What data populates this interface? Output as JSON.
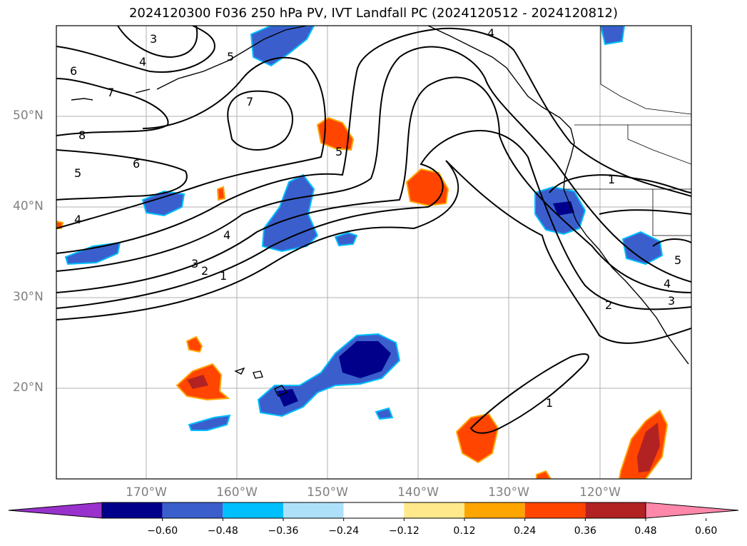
{
  "title": "2024120300 F036 250 hPa PV, IVT Landfall PC (2024120512 - 2024120812)",
  "lat_labels": [
    "50°N",
    "40°N",
    "30°N",
    "20°N"
  ],
  "lon_labels": [
    "170°W",
    "160°W",
    "150°W",
    "140°W",
    "130°W",
    "120°W"
  ],
  "contour_labels": [
    "3",
    "4",
    "5",
    "6",
    "7",
    "7",
    "8",
    "6",
    "5",
    "4",
    "4",
    "3",
    "2",
    "1",
    "5",
    "4",
    "1",
    "1",
    "2",
    "3",
    "4",
    "5",
    "1"
  ],
  "colorbar": {
    "colors": [
      "#9932CC",
      "#00008B",
      "#3A5FCD",
      "#00BFFF",
      "#ADE1FA",
      "#FFFFFF",
      "#FFE98A",
      "#FFA500",
      "#FF4500",
      "#B22222",
      "#FF88AA"
    ],
    "tick_labels": [
      "−0.60",
      "−0.48",
      "−0.36",
      "−0.24",
      "−0.12",
      "0.12",
      "0.24",
      "0.36",
      "0.48",
      "0.60"
    ]
  },
  "colors": {
    "contour": "#000000",
    "coast": "#000000",
    "grid": "#b0b0b0",
    "neg_strong": "#00008B",
    "neg_mid": "#3A5FCD",
    "neg_weak": "#00BFFF",
    "pos_mid": "#FF4500",
    "pos_strong": "#B22222"
  }
}
